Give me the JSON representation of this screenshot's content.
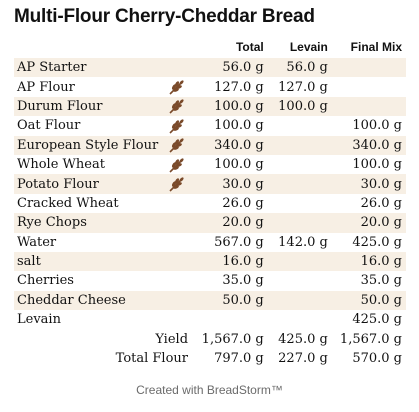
{
  "title": "Multi-Flour Cherry-Cheddar Bread",
  "columns": {
    "total": "Total",
    "levain": "Levain",
    "final": "Final Mix"
  },
  "rows": [
    {
      "name": "AP Starter",
      "icon": "",
      "total": "56.0 g",
      "levain": "56.0 g",
      "final": ""
    },
    {
      "name": "AP Flour",
      "icon": "wheat-icon",
      "total": "127.0 g",
      "levain": "127.0 g",
      "final": ""
    },
    {
      "name": "Durum Flour",
      "icon": "wheat-icon",
      "total": "100.0 g",
      "levain": "100.0 g",
      "final": ""
    },
    {
      "name": "Oat Flour",
      "icon": "wheat-icon",
      "total": "100.0 g",
      "levain": "",
      "final": "100.0 g"
    },
    {
      "name": "European Style Flour",
      "icon": "wheat-icon",
      "total": "340.0 g",
      "levain": "",
      "final": "340.0 g"
    },
    {
      "name": "Whole Wheat",
      "icon": "wheat-icon",
      "total": "100.0 g",
      "levain": "",
      "final": "100.0 g"
    },
    {
      "name": "Potato Flour",
      "icon": "wheat-icon",
      "total": "30.0 g",
      "levain": "",
      "final": "30.0 g"
    },
    {
      "name": "Cracked Wheat",
      "icon": "",
      "total": "26.0 g",
      "levain": "",
      "final": "26.0 g"
    },
    {
      "name": "Rye Chops",
      "icon": "",
      "total": "20.0 g",
      "levain": "",
      "final": "20.0 g"
    },
    {
      "name": "Water",
      "icon": "",
      "total": "567.0 g",
      "levain": "142.0 g",
      "final": "425.0 g"
    },
    {
      "name": "salt",
      "icon": "",
      "total": "16.0 g",
      "levain": "",
      "final": "16.0 g"
    },
    {
      "name": "Cherries",
      "icon": "",
      "total": "35.0 g",
      "levain": "",
      "final": "35.0 g"
    },
    {
      "name": "Cheddar Cheese",
      "icon": "",
      "total": "50.0 g",
      "levain": "",
      "final": "50.0 g"
    },
    {
      "name": "Levain",
      "icon": "",
      "total": "",
      "levain": "",
      "final": "425.0 g"
    }
  ],
  "summary": [
    {
      "label": "Yield",
      "total": "1,567.0 g",
      "levain": "425.0 g",
      "final": "1,567.0 g"
    },
    {
      "label": "Total Flour",
      "total": "797.0 g",
      "levain": "227.0 g",
      "final": "570.0 g"
    }
  ],
  "footer": "Created with BreadStorm™",
  "colors": {
    "stripe": "#f7efe4",
    "wheat_icon": "#7a4a2a"
  }
}
